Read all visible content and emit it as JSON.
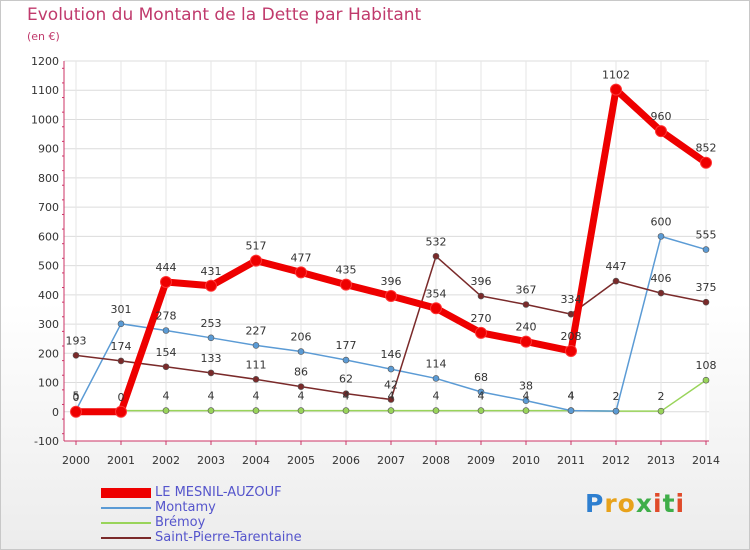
{
  "title": "Evolution du Montant de la Dette par Habitant",
  "subtitle": "(en €)",
  "logo": {
    "text": "Proxiti",
    "letters": [
      {
        "ch": "P",
        "color": "#2e7fd0"
      },
      {
        "ch": "r",
        "color": "#e8a21a"
      },
      {
        "ch": "o",
        "color": "#e8a21a"
      },
      {
        "ch": "x",
        "color": "#3fae49"
      },
      {
        "ch": "i",
        "color": "#e04b2a"
      },
      {
        "ch": "t",
        "color": "#3fae49"
      },
      {
        "ch": "i",
        "color": "#e04b2a"
      }
    ]
  },
  "chart_data": {
    "type": "line",
    "title": "Evolution du Montant de la Dette par Habitant",
    "subtitle": "(en €)",
    "xlabel": "",
    "ylabel": "",
    "x": [
      "2000",
      "2001",
      "2002",
      "2003",
      "2004",
      "2005",
      "2006",
      "2007",
      "2008",
      "2009",
      "2010",
      "2011",
      "2012",
      "2013",
      "2014"
    ],
    "ylim": [
      -100,
      1200
    ],
    "yticks": [
      -100,
      0,
      100,
      200,
      300,
      400,
      500,
      600,
      700,
      800,
      900,
      1000,
      1100,
      1200
    ],
    "grid": true,
    "legend": "bottom-left",
    "series": [
      {
        "name": "LE MESNIL-AUZOUF",
        "color": "#ee0000",
        "highlight": true,
        "values": [
          0,
          0,
          444,
          431,
          517,
          477,
          435,
          396,
          354,
          270,
          240,
          208,
          1102,
          960,
          852
        ]
      },
      {
        "name": "Montamy",
        "color": "#5b9bd5",
        "highlight": false,
        "values": [
          5,
          301,
          278,
          253,
          227,
          206,
          177,
          146,
          114,
          68,
          38,
          4,
          2,
          600,
          555
        ]
      },
      {
        "name": "Brémoy",
        "color": "#99d45a",
        "highlight": false,
        "values": [
          4,
          4,
          4,
          4,
          4,
          4,
          4,
          4,
          4,
          4,
          4,
          4,
          2,
          2,
          108
        ]
      },
      {
        "name": "Saint-Pierre-Tarentaine",
        "color": "#7a2a2a",
        "highlight": false,
        "values": [
          193,
          174,
          154,
          133,
          111,
          86,
          62,
          42,
          532,
          396,
          367,
          334,
          447,
          406,
          375
        ]
      }
    ],
    "data_labels": [
      {
        "series": 0,
        "x": "2000",
        "text": "0"
      },
      {
        "series": 0,
        "x": "2001",
        "text": "0"
      },
      {
        "series": 0,
        "x": "2002",
        "text": "444"
      },
      {
        "series": 0,
        "x": "2003",
        "text": "431"
      },
      {
        "series": 0,
        "x": "2004",
        "text": "517"
      },
      {
        "series": 0,
        "x": "2005",
        "text": "477"
      },
      {
        "series": 0,
        "x": "2006",
        "text": "435"
      },
      {
        "series": 0,
        "x": "2007",
        "text": "396"
      },
      {
        "series": 0,
        "x": "2008",
        "text": "354"
      },
      {
        "series": 0,
        "x": "2009",
        "text": "270"
      },
      {
        "series": 0,
        "x": "2010",
        "text": "240"
      },
      {
        "series": 0,
        "x": "2011",
        "text": "208"
      },
      {
        "series": 0,
        "x": "2012",
        "text": "1102"
      },
      {
        "series": 0,
        "x": "2013",
        "text": "960"
      },
      {
        "series": 0,
        "x": "2014",
        "text": "852"
      },
      {
        "series": 1,
        "x": "2000",
        "text": "5"
      },
      {
        "series": 1,
        "x": "2001",
        "text": "301"
      },
      {
        "series": 1,
        "x": "2002",
        "text": "278"
      },
      {
        "series": 1,
        "x": "2003",
        "text": "253"
      },
      {
        "series": 1,
        "x": "2004",
        "text": "227"
      },
      {
        "series": 1,
        "x": "2005",
        "text": "206"
      },
      {
        "series": 1,
        "x": "2006",
        "text": "177"
      },
      {
        "series": 1,
        "x": "2007",
        "text": "146"
      },
      {
        "series": 1,
        "x": "2008",
        "text": "114"
      },
      {
        "series": 1,
        "x": "2009",
        "text": "68"
      },
      {
        "series": 1,
        "x": "2010",
        "text": "38"
      },
      {
        "series": 1,
        "x": "2011",
        "text": "4"
      },
      {
        "series": 1,
        "x": "2012",
        "text": "2"
      },
      {
        "series": 1,
        "x": "2013",
        "text": "600"
      },
      {
        "series": 1,
        "x": "2014",
        "text": "555"
      },
      {
        "series": 2,
        "x": "2002",
        "text": "4"
      },
      {
        "series": 2,
        "x": "2003",
        "text": "4"
      },
      {
        "series": 2,
        "x": "2004",
        "text": "4"
      },
      {
        "series": 2,
        "x": "2005",
        "text": "4"
      },
      {
        "series": 2,
        "x": "2006",
        "text": "4"
      },
      {
        "series": 2,
        "x": "2007",
        "text": "4"
      },
      {
        "series": 2,
        "x": "2008",
        "text": "4"
      },
      {
        "series": 2,
        "x": "2009",
        "text": "4"
      },
      {
        "series": 2,
        "x": "2010",
        "text": "4"
      },
      {
        "series": 2,
        "x": "2011",
        "text": "4"
      },
      {
        "series": 2,
        "x": "2013",
        "text": "2"
      },
      {
        "series": 2,
        "x": "2014",
        "text": "108"
      },
      {
        "series": 3,
        "x": "2000",
        "text": "193"
      },
      {
        "series": 3,
        "x": "2001",
        "text": "174"
      },
      {
        "series": 3,
        "x": "2002",
        "text": "154"
      },
      {
        "series": 3,
        "x": "2003",
        "text": "133"
      },
      {
        "series": 3,
        "x": "2004",
        "text": "111"
      },
      {
        "series": 3,
        "x": "2005",
        "text": "86"
      },
      {
        "series": 3,
        "x": "2006",
        "text": "62"
      },
      {
        "series": 3,
        "x": "2007",
        "text": "42"
      },
      {
        "series": 3,
        "x": "2008",
        "text": "532"
      },
      {
        "series": 3,
        "x": "2009",
        "text": "396"
      },
      {
        "series": 3,
        "x": "2010",
        "text": "367"
      },
      {
        "series": 3,
        "x": "2011",
        "text": "334"
      },
      {
        "series": 3,
        "x": "2012",
        "text": "447"
      },
      {
        "series": 3,
        "x": "2013",
        "text": "406"
      },
      {
        "series": 3,
        "x": "2014",
        "text": "375"
      }
    ]
  }
}
